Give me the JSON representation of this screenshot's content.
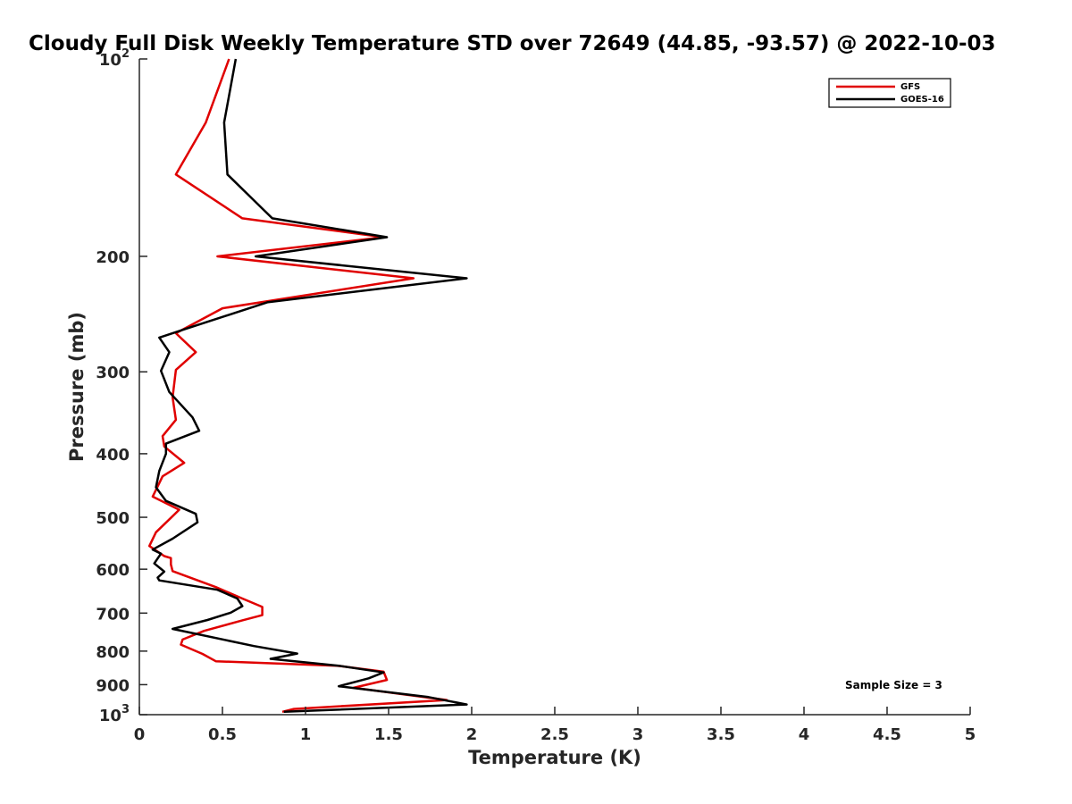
{
  "chart_data": {
    "type": "line",
    "title": "Cloudy Full Disk Weekly Temperature STD over 72649 (44.85, -93.57) @ 2022-10-03",
    "xlabel": "Temperature (K)",
    "ylabel": "Pressure (mb)",
    "xlim": [
      0,
      5
    ],
    "ylim": [
      1000,
      100
    ],
    "yscale": "log",
    "x_ticks": [
      "0",
      "0.5",
      "1",
      "1.5",
      "2",
      "2.5",
      "3",
      "3.5",
      "4",
      "4.5",
      "5"
    ],
    "y_ticks": [
      {
        "value": 100,
        "base": "10",
        "exp": "2"
      },
      {
        "value": 200,
        "label": "200"
      },
      {
        "value": 300,
        "label": "300"
      },
      {
        "value": 400,
        "label": "400"
      },
      {
        "value": 500,
        "label": "500"
      },
      {
        "value": 600,
        "label": "600"
      },
      {
        "value": 700,
        "label": "700"
      },
      {
        "value": 800,
        "label": "800"
      },
      {
        "value": 900,
        "label": "900"
      },
      {
        "value": 1000,
        "base": "10",
        "exp": "3"
      }
    ],
    "grid": false,
    "legend_position": "top-right",
    "annotation": "Sample Size = 3",
    "series": [
      {
        "name": "GFS",
        "color": "#e00000",
        "points": [
          [
            0.54,
            100
          ],
          [
            0.4,
            125
          ],
          [
            0.22,
            150
          ],
          [
            0.62,
            175
          ],
          [
            1.47,
            187
          ],
          [
            0.47,
            200
          ],
          [
            1.65,
            216
          ],
          [
            0.5,
            240
          ],
          [
            0.22,
            262
          ],
          [
            0.34,
            280
          ],
          [
            0.22,
            298
          ],
          [
            0.2,
            328
          ],
          [
            0.22,
            355
          ],
          [
            0.14,
            376
          ],
          [
            0.15,
            390
          ],
          [
            0.27,
            413
          ],
          [
            0.14,
            433
          ],
          [
            0.08,
            465
          ],
          [
            0.24,
            487
          ],
          [
            0.19,
            501
          ],
          [
            0.1,
            527
          ],
          [
            0.06,
            553
          ],
          [
            0.15,
            573
          ],
          [
            0.19,
            577
          ],
          [
            0.19,
            590
          ],
          [
            0.2,
            604
          ],
          [
            0.46,
            639
          ],
          [
            0.62,
            665
          ],
          [
            0.74,
            685
          ],
          [
            0.74,
            705
          ],
          [
            0.62,
            718
          ],
          [
            0.39,
            745
          ],
          [
            0.26,
            768
          ],
          [
            0.25,
            782
          ],
          [
            0.38,
            808
          ],
          [
            0.46,
            829
          ],
          [
            1.19,
            842
          ],
          [
            1.47,
            860
          ],
          [
            1.49,
            885
          ],
          [
            1.29,
            910
          ],
          [
            1.85,
            950
          ],
          [
            0.93,
            980
          ],
          [
            0.86,
            990
          ]
        ]
      },
      {
        "name": "GOES-16",
        "color": "#000000",
        "points": [
          [
            0.58,
            100
          ],
          [
            0.51,
            125
          ],
          [
            0.53,
            150
          ],
          [
            0.8,
            175
          ],
          [
            1.49,
            187
          ],
          [
            0.7,
            200
          ],
          [
            1.97,
            216
          ],
          [
            0.77,
            235
          ],
          [
            0.28,
            258
          ],
          [
            0.12,
            266
          ],
          [
            0.18,
            280
          ],
          [
            0.13,
            299
          ],
          [
            0.18,
            322
          ],
          [
            0.32,
            352
          ],
          [
            0.36,
            369
          ],
          [
            0.16,
            386
          ],
          [
            0.16,
            400
          ],
          [
            0.12,
            425
          ],
          [
            0.1,
            450
          ],
          [
            0.16,
            472
          ],
          [
            0.34,
            494
          ],
          [
            0.35,
            509
          ],
          [
            0.2,
            539
          ],
          [
            0.08,
            560
          ],
          [
            0.13,
            568
          ],
          [
            0.09,
            588
          ],
          [
            0.15,
            605
          ],
          [
            0.11,
            618
          ],
          [
            0.12,
            624
          ],
          [
            0.47,
            645
          ],
          [
            0.59,
            665
          ],
          [
            0.62,
            683
          ],
          [
            0.55,
            699
          ],
          [
            0.41,
            717
          ],
          [
            0.2,
            740
          ],
          [
            0.69,
            786
          ],
          [
            0.95,
            807
          ],
          [
            0.79,
            822
          ],
          [
            1.2,
            842
          ],
          [
            1.47,
            862
          ],
          [
            1.38,
            880
          ],
          [
            1.2,
            905
          ],
          [
            1.74,
            940
          ],
          [
            1.97,
            965
          ],
          [
            0.87,
            990
          ]
        ]
      }
    ]
  }
}
